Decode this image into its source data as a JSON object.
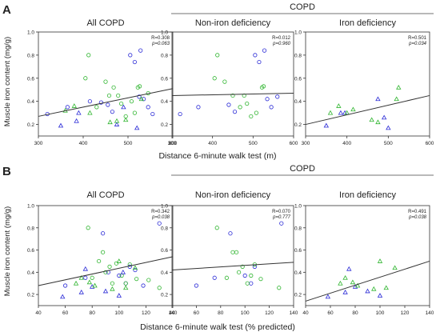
{
  "panels": [
    {
      "letter": "A",
      "header": "COPD",
      "ylabel": "Muscle iron content (mg/g)",
      "xlabel": "Distance 6-minute walk test (m)",
      "chart_data": [
        {
          "type": "scatter",
          "title": "All COPD",
          "r_text": "R=0.308",
          "p_text": "p=0.063",
          "xlim": [
            300,
            600
          ],
          "xticks": [
            "300",
            "400",
            "500",
            "600"
          ],
          "ylim": [
            0.1,
            1.0
          ],
          "yticks": [
            "0.2",
            "0.4",
            "0.6",
            "0.8",
            "1.0"
          ],
          "regression": [
            [
              300,
              0.27
            ],
            [
              600,
              0.51
            ]
          ],
          "series": [
            {
              "marker": "circle",
              "color": "#2b2bd6",
              "points": [
                [
                  320,
                  0.29
                ],
                [
                  365,
                  0.35
                ],
                [
                  415,
                  0.4
                ],
                [
                  440,
                  0.39
                ],
                [
                  455,
                  0.37
                ],
                [
                  465,
                  0.31
                ],
                [
                  505,
                  0.8
                ],
                [
                  515,
                  0.74
                ],
                [
                  525,
                  0.44
                ],
                [
                  528,
                  0.84
                ],
                [
                  535,
                  0.42
                ],
                [
                  545,
                  0.35
                ],
                [
                  555,
                  0.29
                ]
              ]
            },
            {
              "marker": "circle",
              "color": "#2fb52f",
              "points": [
                [
                  405,
                  0.6
                ],
                [
                  412,
                  0.8
                ],
                [
                  430,
                  0.35
                ],
                [
                  450,
                  0.57
                ],
                [
                  458,
                  0.45
                ],
                [
                  468,
                  0.52
                ],
                [
                  478,
                  0.45
                ],
                [
                  485,
                  0.38
                ],
                [
                  495,
                  0.27
                ],
                [
                  508,
                  0.4
                ],
                [
                  515,
                  0.3
                ],
                [
                  522,
                  0.52
                ],
                [
                  526,
                  0.53
                ],
                [
                  545,
                  0.47
                ]
              ]
            },
            {
              "marker": "triangle",
              "color": "#2b2bd6",
              "points": [
                [
                  350,
                  0.19
                ],
                [
                  385,
                  0.23
                ],
                [
                  390,
                  0.3
                ],
                [
                  475,
                  0.2
                ],
                [
                  490,
                  0.35
                ],
                [
                  520,
                  0.17
                ]
              ]
            },
            {
              "marker": "triangle",
              "color": "#2fb52f",
              "points": [
                [
                  360,
                  0.32
                ],
                [
                  380,
                  0.36
                ],
                [
                  415,
                  0.3
                ],
                [
                  460,
                  0.22
                ],
                [
                  475,
                  0.23
                ],
                [
                  495,
                  0.24
                ],
                [
                  530,
                  0.42
                ]
              ]
            }
          ]
        },
        {
          "type": "scatter",
          "title": "Non-iron deficiency",
          "r_text": "R=0.012",
          "p_text": "p=0.960",
          "xlim": [
            300,
            600
          ],
          "xticks": [
            "300",
            "400",
            "500",
            "600"
          ],
          "ylim": [
            0.1,
            1.0
          ],
          "yticks": [
            "0.2",
            "0.4",
            "0.6",
            "0.8",
            "1.0"
          ],
          "regression": [
            [
              300,
              0.45
            ],
            [
              600,
              0.47
            ]
          ],
          "series": [
            {
              "marker": "circle",
              "color": "#2b2bd6",
              "points": [
                [
                  320,
                  0.29
                ],
                [
                  365,
                  0.35
                ],
                [
                  440,
                  0.37
                ],
                [
                  455,
                  0.31
                ],
                [
                  505,
                  0.8
                ],
                [
                  515,
                  0.74
                ],
                [
                  528,
                  0.84
                ],
                [
                  535,
                  0.42
                ],
                [
                  545,
                  0.35
                ],
                [
                  560,
                  0.44
                ]
              ]
            },
            {
              "marker": "circle",
              "color": "#2fb52f",
              "points": [
                [
                  405,
                  0.6
                ],
                [
                  412,
                  0.8
                ],
                [
                  430,
                  0.57
                ],
                [
                  450,
                  0.45
                ],
                [
                  468,
                  0.35
                ],
                [
                  478,
                  0.45
                ],
                [
                  485,
                  0.38
                ],
                [
                  495,
                  0.27
                ],
                [
                  508,
                  0.3
                ],
                [
                  522,
                  0.52
                ],
                [
                  526,
                  0.53
                ]
              ]
            }
          ]
        },
        {
          "type": "scatter",
          "title": "Iron deficiency",
          "r_text": "R=0.501",
          "p_text": "p=0.034",
          "xlim": [
            300,
            600
          ],
          "xticks": [
            "300",
            "400",
            "500",
            "600"
          ],
          "ylim": [
            0.1,
            1.0
          ],
          "yticks": [
            "0.2",
            "0.4",
            "0.6",
            "0.8",
            "1.0"
          ],
          "regression": [
            [
              300,
              0.2
            ],
            [
              600,
              0.45
            ]
          ],
          "series": [
            {
              "marker": "triangle",
              "color": "#2b2bd6",
              "points": [
                [
                  350,
                  0.19
                ],
                [
                  385,
                  0.3
                ],
                [
                  395,
                  0.3
                ],
                [
                  475,
                  0.42
                ],
                [
                  490,
                  0.26
                ],
                [
                  500,
                  0.17
                ]
              ]
            },
            {
              "marker": "triangle",
              "color": "#2fb52f",
              "points": [
                [
                  360,
                  0.3
                ],
                [
                  380,
                  0.36
                ],
                [
                  400,
                  0.3
                ],
                [
                  415,
                  0.33
                ],
                [
                  460,
                  0.24
                ],
                [
                  475,
                  0.22
                ],
                [
                  520,
                  0.42
                ],
                [
                  525,
                  0.52
                ]
              ]
            }
          ]
        }
      ]
    },
    {
      "letter": "B",
      "header": "COPD",
      "ylabel": "Muscle iron content (mg/g)",
      "xlabel": "Distance 6-minute walk test (% predicted)",
      "chart_data": [
        {
          "type": "scatter",
          "title": "All COPD",
          "r_text": "R=0.342",
          "p_text": "p=0.038",
          "xlim": [
            40,
            140
          ],
          "xticks": [
            "40",
            "60",
            "80",
            "100",
            "120",
            "140"
          ],
          "ylim": [
            0.1,
            1.0
          ],
          "yticks": [
            "0.2",
            "0.4",
            "0.6",
            "0.8",
            "1.0"
          ],
          "regression": [
            [
              40,
              0.28
            ],
            [
              140,
              0.54
            ]
          ],
          "series": [
            {
              "marker": "circle",
              "color": "#2b2bd6",
              "points": [
                [
                  60,
                  0.28
                ],
                [
                  75,
                  0.35
                ],
                [
                  88,
                  0.75
                ],
                [
                  92,
                  0.4
                ],
                [
                  100,
                  0.37
                ],
                [
                  105,
                  0.3
                ],
                [
                  108,
                  0.45
                ],
                [
                  112,
                  0.42
                ],
                [
                  118,
                  0.28
                ],
                [
                  130,
                  0.84
                ]
              ]
            },
            {
              "marker": "circle",
              "color": "#2fb52f",
              "points": [
                [
                  77,
                  0.8
                ],
                [
                  80,
                  0.35
                ],
                [
                  85,
                  0.5
                ],
                [
                  88,
                  0.58
                ],
                [
                  90,
                  0.4
                ],
                [
                  93,
                  0.45
                ],
                [
                  95,
                  0.3
                ],
                [
                  98,
                  0.48
                ],
                [
                  102,
                  0.37
                ],
                [
                  105,
                  0.3
                ],
                [
                  108,
                  0.47
                ],
                [
                  113,
                  0.34
                ],
                [
                  122,
                  0.33
                ],
                [
                  130,
                  0.26
                ]
              ]
            },
            {
              "marker": "triangle",
              "color": "#2b2bd6",
              "points": [
                [
                  58,
                  0.18
                ],
                [
                  72,
                  0.22
                ],
                [
                  75,
                  0.43
                ],
                [
                  80,
                  0.27
                ],
                [
                  90,
                  0.23
                ],
                [
                  100,
                  0.19
                ],
                [
                  103,
                  0.4
                ]
              ]
            },
            {
              "marker": "triangle",
              "color": "#2fb52f",
              "points": [
                [
                  68,
                  0.3
                ],
                [
                  72,
                  0.35
                ],
                [
                  78,
                  0.31
                ],
                [
                  82,
                  0.28
                ],
                [
                  95,
                  0.25
                ],
                [
                  100,
                  0.5
                ],
                [
                  105,
                  0.26
                ],
                [
                  112,
                  0.44
                ]
              ]
            }
          ]
        },
        {
          "type": "scatter",
          "title": "Non-iron deficiency",
          "r_text": "R=0.070",
          "p_text": "p=0.777",
          "xlim": [
            40,
            140
          ],
          "xticks": [
            "40",
            "60",
            "80",
            "100",
            "120",
            "140"
          ],
          "ylim": [
            0.1,
            1.0
          ],
          "yticks": [
            "0.2",
            "0.4",
            "0.6",
            "0.8",
            "1.0"
          ],
          "regression": [
            [
              40,
              0.42
            ],
            [
              140,
              0.49
            ]
          ],
          "series": [
            {
              "marker": "circle",
              "color": "#2b2bd6",
              "points": [
                [
                  60,
                  0.28
                ],
                [
                  75,
                  0.35
                ],
                [
                  88,
                  0.75
                ],
                [
                  100,
                  0.37
                ],
                [
                  105,
                  0.3
                ],
                [
                  108,
                  0.45
                ],
                [
                  130,
                  0.84
                ]
              ]
            },
            {
              "marker": "circle",
              "color": "#2fb52f",
              "points": [
                [
                  77,
                  0.8
                ],
                [
                  85,
                  0.35
                ],
                [
                  90,
                  0.58
                ],
                [
                  93,
                  0.58
                ],
                [
                  95,
                  0.4
                ],
                [
                  98,
                  0.45
                ],
                [
                  102,
                  0.3
                ],
                [
                  105,
                  0.37
                ],
                [
                  108,
                  0.47
                ],
                [
                  113,
                  0.34
                ],
                [
                  128,
                  0.26
                ]
              ]
            }
          ]
        },
        {
          "type": "scatter",
          "title": "Iron deficiency",
          "r_text": "R=0.491",
          "p_text": "p=0.038",
          "xlim": [
            40,
            140
          ],
          "xticks": [
            "40",
            "60",
            "80",
            "100",
            "120",
            "140"
          ],
          "ylim": [
            0.1,
            1.0
          ],
          "yticks": [
            "0.2",
            "0.4",
            "0.6",
            "0.8",
            "1.0"
          ],
          "regression": [
            [
              40,
              0.14
            ],
            [
              140,
              0.5
            ]
          ],
          "series": [
            {
              "marker": "triangle",
              "color": "#2b2bd6",
              "points": [
                [
                  58,
                  0.18
                ],
                [
                  72,
                  0.22
                ],
                [
                  75,
                  0.43
                ],
                [
                  80,
                  0.27
                ],
                [
                  90,
                  0.23
                ],
                [
                  100,
                  0.19
                ]
              ]
            },
            {
              "marker": "triangle",
              "color": "#2fb52f",
              "points": [
                [
                  68,
                  0.3
                ],
                [
                  72,
                  0.35
                ],
                [
                  78,
                  0.31
                ],
                [
                  82,
                  0.28
                ],
                [
                  95,
                  0.25
                ],
                [
                  100,
                  0.5
                ],
                [
                  105,
                  0.26
                ],
                [
                  112,
                  0.44
                ]
              ]
            }
          ]
        }
      ]
    }
  ]
}
